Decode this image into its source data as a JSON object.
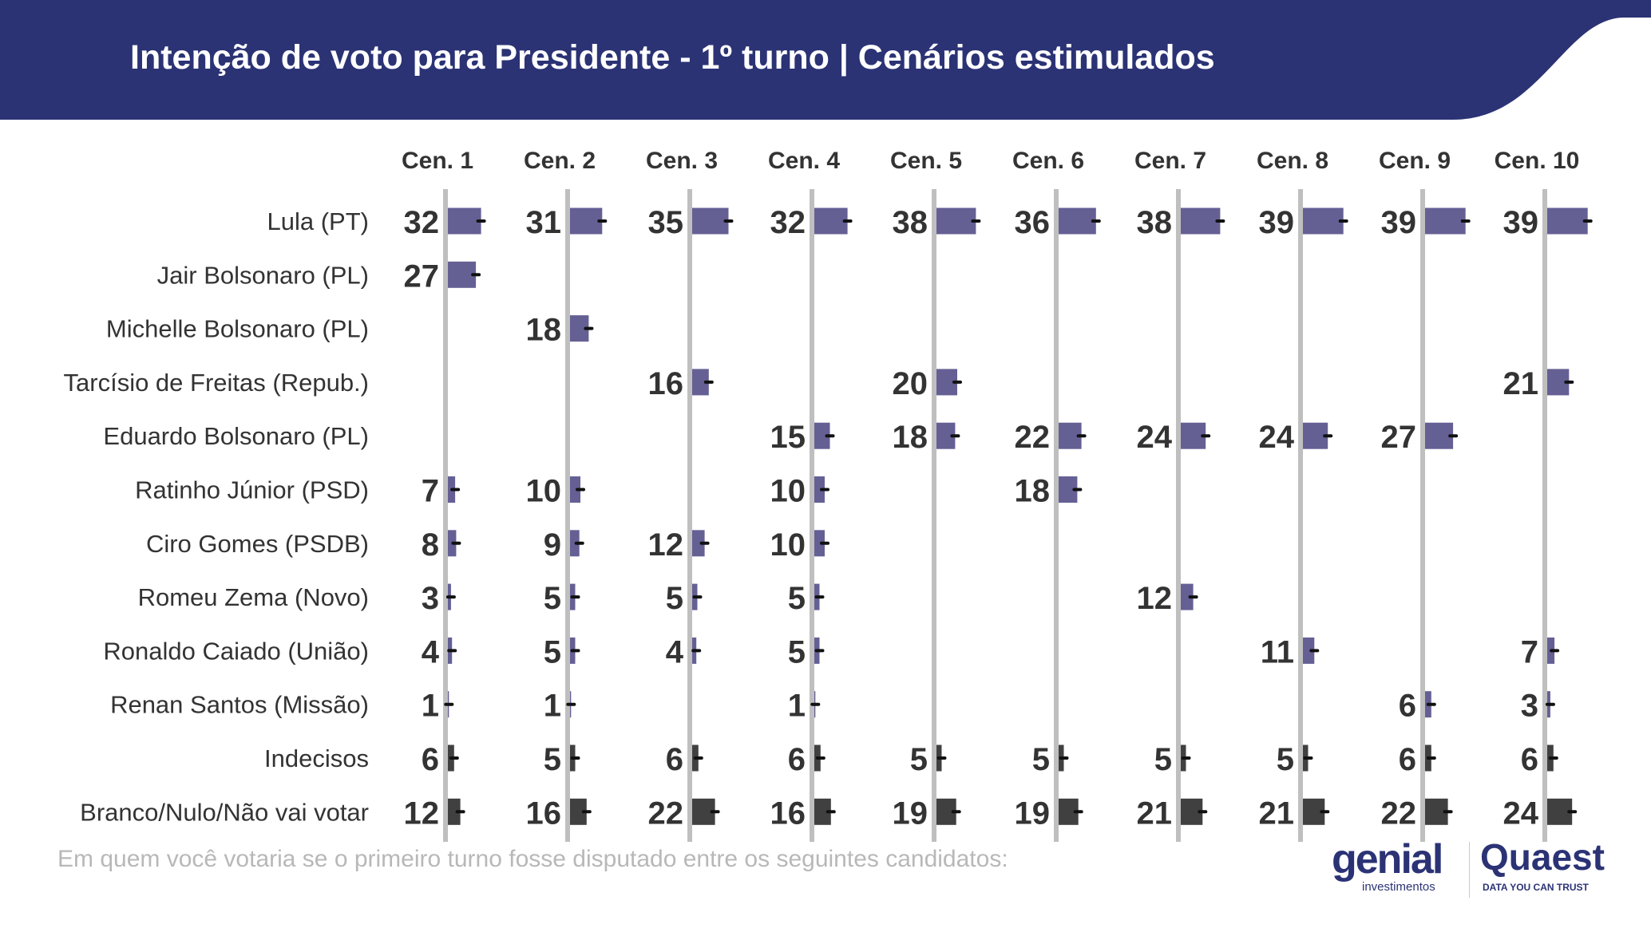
{
  "header": {
    "title": "Intenção de voto para Presidente - 1º turno | Cenários estimulados"
  },
  "footnote": "Em quem você votaria se o primeiro turno fosse disputado entre os seguintes candidatos:",
  "logos": {
    "genial": "genial",
    "genial_sub": "investimentos",
    "quaest": "Quaest",
    "quaest_sub": "DATA YOU CAN TRUST"
  },
  "colors": {
    "header": "#2b3375",
    "candidate_bar": "#646094",
    "blank_bar": "#404040",
    "axis": "#bfbfbf",
    "value_text": "#333333"
  },
  "chart_data": {
    "type": "bar",
    "orientation": "horizontal",
    "grid": false,
    "categories": [
      "Lula (PT)",
      "Jair Bolsonaro (PL)",
      "Michelle Bolsonaro (PL)",
      "Tarcísio de Freitas (Repub.)",
      "Eduardo Bolsonaro (PL)",
      "Ratinho Júnior (PSD)",
      "Ciro Gomes (PSDB)",
      "Romeu Zema (Novo)",
      "Ronaldo Caiado (União)",
      "Renan Santos (Missão)",
      "Indecisos",
      "Branco/Nulo/Não vai votar"
    ],
    "series": [
      {
        "name": "Cen. 1",
        "values": [
          32,
          27,
          null,
          null,
          null,
          7,
          8,
          3,
          4,
          1,
          6,
          12
        ]
      },
      {
        "name": "Cen. 2",
        "values": [
          31,
          null,
          18,
          null,
          null,
          10,
          9,
          5,
          5,
          1,
          5,
          16
        ]
      },
      {
        "name": "Cen. 3",
        "values": [
          35,
          null,
          null,
          16,
          null,
          null,
          12,
          5,
          4,
          null,
          6,
          22
        ]
      },
      {
        "name": "Cen. 4",
        "values": [
          32,
          null,
          null,
          null,
          15,
          10,
          10,
          5,
          5,
          1,
          6,
          16
        ]
      },
      {
        "name": "Cen. 5",
        "values": [
          38,
          null,
          null,
          20,
          18,
          null,
          null,
          null,
          null,
          null,
          5,
          19
        ]
      },
      {
        "name": "Cen. 6",
        "values": [
          36,
          null,
          null,
          null,
          22,
          18,
          null,
          null,
          null,
          null,
          5,
          19
        ]
      },
      {
        "name": "Cen. 7",
        "values": [
          38,
          null,
          null,
          null,
          24,
          null,
          null,
          12,
          null,
          null,
          5,
          21
        ]
      },
      {
        "name": "Cen. 8",
        "values": [
          39,
          null,
          null,
          null,
          24,
          null,
          null,
          null,
          11,
          null,
          5,
          21
        ]
      },
      {
        "name": "Cen. 9",
        "values": [
          39,
          null,
          null,
          null,
          27,
          null,
          null,
          null,
          null,
          6,
          6,
          22
        ]
      },
      {
        "name": "Cen. 10",
        "values": [
          39,
          null,
          null,
          21,
          null,
          null,
          null,
          null,
          7,
          3,
          6,
          24
        ]
      }
    ]
  }
}
